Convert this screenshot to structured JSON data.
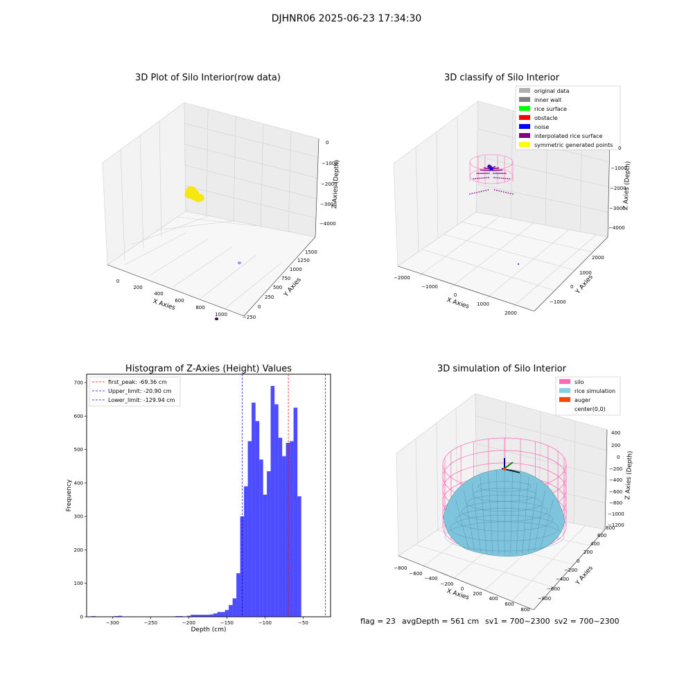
{
  "page": {
    "suptitle": "DJHNR06 2025-06-23 17:34:30",
    "footer": {
      "flag": "flag = 23",
      "avg": "avgDepth = 561 cm",
      "sv1": "sv1 = 700~2300",
      "sv2": "sv2 = 700~2300"
    }
  },
  "colors": {
    "yellow": "#f5e70f",
    "pink": "#ff69b4",
    "skyblue": "#87ceeb",
    "hist": "#4d4dff",
    "blue_line": "#0000ff",
    "red_line": "#ff0000",
    "purple": "#800080",
    "orange": "#ff4500"
  },
  "chart_data": [
    {
      "type": "scatter",
      "title": "3D Plot of Silo Interior(row data)",
      "xlabel": "X Axies",
      "ylabel": "Y Axies",
      "zlabel": "Z Axies (Depth)",
      "x_ticks": [
        "0",
        "200",
        "400",
        "600",
        "800",
        "1000"
      ],
      "y_ticks": [
        "−250",
        "0",
        "250",
        "500",
        "750",
        "1000",
        "1250",
        "1500"
      ],
      "z_ticks": [
        "0",
        "−1000",
        "−2000",
        "−3000",
        "−4000"
      ],
      "series": [
        {
          "color": "yellow",
          "points": [
            [
              30,
              1500,
              -2400
            ],
            [
              60,
              1480,
              -2450
            ],
            [
              90,
              1450,
              -2500
            ],
            [
              50,
              1420,
              -2420
            ],
            [
              120,
              1460,
              -2550
            ]
          ]
        },
        {
          "color": "#9999cc",
          "points": [
            [
              700,
              1000,
              -4000
            ]
          ]
        },
        {
          "color": "#440055",
          "points": [
            [
              950,
              -200,
              -4300
            ]
          ]
        }
      ]
    },
    {
      "type": "scatter",
      "title": "3D classify of Silo Interior",
      "xlabel": "X Axies",
      "ylabel": "Y Axies",
      "zlabel": "Z Axies (Depth)",
      "x_ticks": [
        "−2000",
        "−1000",
        "0",
        "1000",
        "2000"
      ],
      "y_ticks": [
        "−1000",
        "0",
        "1000",
        "2000"
      ],
      "z_ticks": [
        "0",
        "−1000",
        "−2000",
        "−3000",
        "−4000"
      ],
      "legend": [
        {
          "label": "original data",
          "color": "#b0b0b0"
        },
        {
          "label": "inner wall",
          "color": "#808080"
        },
        {
          "label": "rice surface",
          "color": "#00ff00"
        },
        {
          "label": "obstacle",
          "color": "#ff0000"
        },
        {
          "label": "noise",
          "color": "#0000ff"
        },
        {
          "label": "interpolated rice surface",
          "color": "#800080"
        },
        {
          "label": "symmetric generated points",
          "color": "#ffff00"
        }
      ]
    },
    {
      "type": "bar",
      "title": "Histogram of Z-Axies (Height) Values",
      "xlabel": "Depth (cm)",
      "ylabel": "Frequency",
      "xlim": [
        -334,
        -14
      ],
      "ylim": [
        0,
        725
      ],
      "x_ticks": [
        -300,
        -250,
        -200,
        -150,
        -100,
        -50
      ],
      "y_ticks": [
        0,
        100,
        200,
        300,
        400,
        500,
        600,
        700
      ],
      "bin_width": 5.08,
      "bins": [
        [
          -325,
          2
        ],
        [
          -295,
          2
        ],
        [
          -290,
          3
        ],
        [
          -260,
          1
        ],
        [
          -245,
          1
        ],
        [
          -225,
          1
        ],
        [
          -215,
          2
        ],
        [
          -210,
          2
        ],
        [
          -200,
          3
        ],
        [
          -195,
          6
        ],
        [
          -190,
          6
        ],
        [
          -185,
          6
        ],
        [
          -180,
          6
        ],
        [
          -175,
          6
        ],
        [
          -170,
          7
        ],
        [
          -165,
          10
        ],
        [
          -160,
          14
        ],
        [
          -155,
          14
        ],
        [
          -150,
          20
        ],
        [
          -145,
          35
        ],
        [
          -140,
          55
        ],
        [
          -135,
          130
        ],
        [
          -130,
          300
        ],
        [
          -125,
          390
        ],
        [
          -120,
          525
        ],
        [
          -115,
          640
        ],
        [
          -110,
          585
        ],
        [
          -105,
          470
        ],
        [
          -100,
          365
        ],
        [
          -95,
          435
        ],
        [
          -90,
          690
        ],
        [
          -85,
          635
        ],
        [
          -80,
          535
        ],
        [
          -75,
          480
        ],
        [
          -70,
          520
        ],
        [
          -65,
          525
        ],
        [
          -60,
          625
        ],
        [
          -55,
          360
        ]
      ],
      "vlines": [
        {
          "label": "first_peak: -69.36 cm",
          "x": -69.36,
          "color": "red_line"
        },
        {
          "label": "Upper_limit: -20.90 cm",
          "x": -20.9,
          "color": "blue_line"
        },
        {
          "label": "Lower_limit: -129.94 cm",
          "x": -129.94,
          "color": "blue_line"
        }
      ]
    },
    {
      "type": "area",
      "title": "3D simulation of Silo Interior",
      "xlabel": "X Axies",
      "ylabel": "Y Axies",
      "zlabel": "Z Axies (Depth)",
      "x_ticks": [
        "−800",
        "−600",
        "−400",
        "−200",
        "0",
        "200",
        "400",
        "600",
        "800"
      ],
      "y_ticks": [
        "−800",
        "−600",
        "−400",
        "−200",
        "0",
        "200",
        "400",
        "600",
        "800"
      ],
      "z_ticks": [
        "400",
        "200",
        "0",
        "−200",
        "−400",
        "−600",
        "−800",
        "−1000",
        "−1200"
      ],
      "legend": [
        {
          "label": "silo",
          "color": "#ff69b4"
        },
        {
          "label": "rice simulation",
          "color": "#87ceeb"
        },
        {
          "label": "auger",
          "color": "#ff4500"
        },
        {
          "label": "center(0,0)",
          "color": ""
        }
      ]
    }
  ]
}
